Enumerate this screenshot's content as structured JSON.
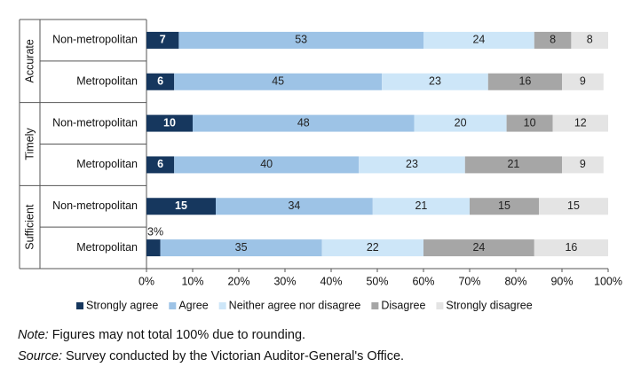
{
  "chart_data": {
    "type": "stacked-bar-horizontal",
    "groups": [
      "Accurate",
      "Timely",
      "Sufficient"
    ],
    "categories": [
      "Non-metropolitan",
      "Metropolitan",
      "Non-metropolitan",
      "Metropolitan",
      "Non-metropolitan",
      "Metropolitan"
    ],
    "series": [
      {
        "name": "Strongly agree",
        "color": "#16375e",
        "values": [
          7,
          6,
          10,
          6,
          15,
          3
        ],
        "value_labels": [
          "7",
          "6",
          "10",
          "6",
          "15",
          "3%"
        ]
      },
      {
        "name": "Agree",
        "color": "#9dc3e6",
        "values": [
          53,
          45,
          48,
          40,
          34,
          35
        ]
      },
      {
        "name": "Neither agree nor disagree",
        "color": "#cde6f8",
        "values": [
          24,
          23,
          20,
          23,
          21,
          22
        ]
      },
      {
        "name": "Disagree",
        "color": "#a6a6a6",
        "values": [
          8,
          16,
          10,
          21,
          15,
          24
        ]
      },
      {
        "name": "Strongly disagree",
        "color": "#e4e4e4",
        "values": [
          8,
          9,
          12,
          9,
          15,
          16
        ]
      }
    ],
    "xlim": [
      0,
      100
    ],
    "xticks": [
      {
        "value": 0,
        "label": "0%"
      },
      {
        "value": 10,
        "label": "10%"
      },
      {
        "value": 20,
        "label": "20%"
      },
      {
        "value": 30,
        "label": "30%"
      },
      {
        "value": 40,
        "label": "40%"
      },
      {
        "value": 50,
        "label": "50%"
      },
      {
        "value": 60,
        "label": "60%"
      },
      {
        "value": 70,
        "label": "70%"
      },
      {
        "value": 80,
        "label": "80%"
      },
      {
        "value": 90,
        "label": "90%"
      },
      {
        "value": 100,
        "label": "100%"
      }
    ],
    "notes": [
      {
        "label": "Note:",
        "text": " Figures may not total 100% due to rounding."
      },
      {
        "label": "Source:",
        "text": " Survey conducted by the Victorian Auditor-General's Office."
      }
    ]
  }
}
